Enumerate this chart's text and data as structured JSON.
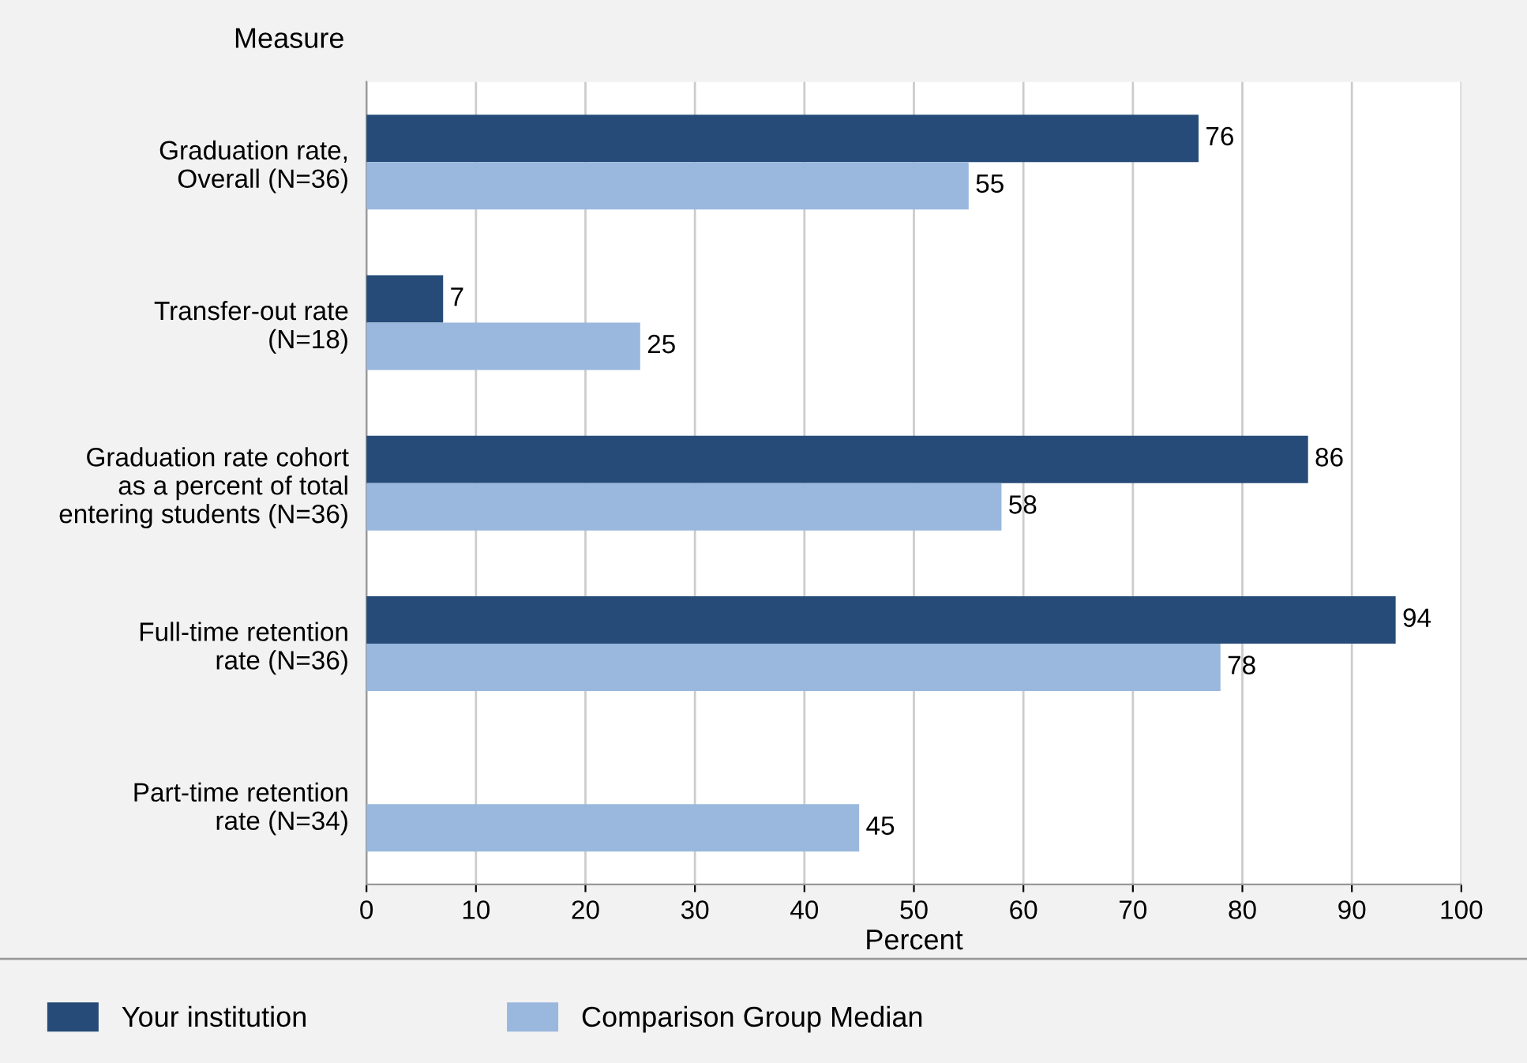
{
  "chart_data": {
    "type": "bar",
    "orientation": "horizontal",
    "ylabel": "Measure",
    "xlabel": "Percent",
    "categories": [
      "Graduation rate,\nOverall (N=36)",
      "Transfer-out rate\n(N=18)",
      "Graduation rate cohort\nas a percent of total\nentering students (N=36)",
      "Full-time retention\nrate (N=36)",
      "Part-time retention\nrate (N=34)"
    ],
    "series": [
      {
        "name": "Your institution",
        "color": "#264b78",
        "values": [
          76,
          7,
          86,
          94,
          null
        ]
      },
      {
        "name": "Comparison Group Median",
        "color": "#9ab8de",
        "values": [
          55,
          25,
          58,
          78,
          45
        ]
      }
    ],
    "xlim": [
      0,
      100
    ],
    "xticks": [
      0,
      10,
      20,
      30,
      40,
      50,
      60,
      70,
      80,
      90,
      100
    ],
    "grid": "x",
    "legend": "bottom",
    "data_labels": true
  }
}
